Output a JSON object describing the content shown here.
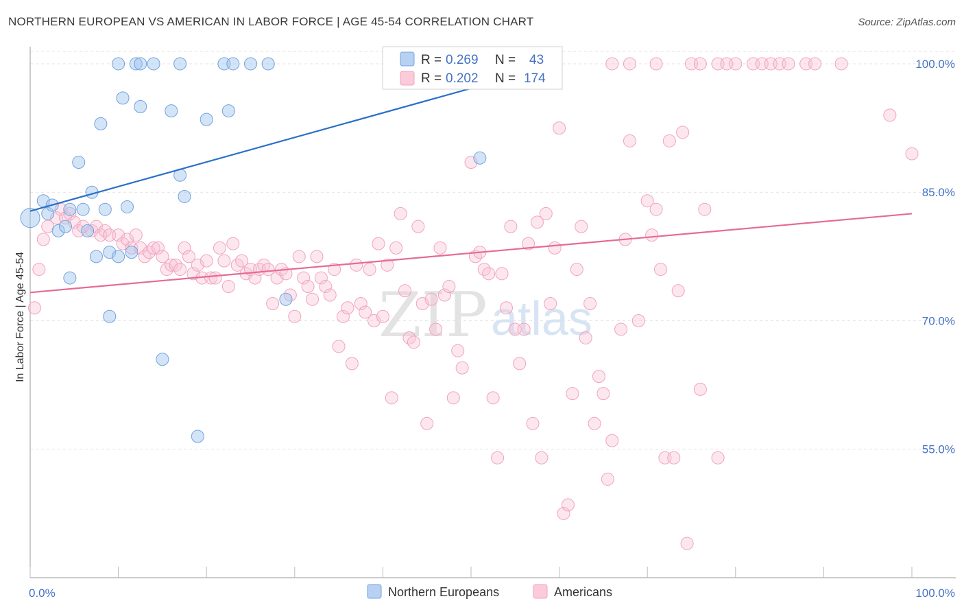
{
  "title": "NORTHERN EUROPEAN VS AMERICAN IN LABOR FORCE | AGE 45-54 CORRELATION CHART",
  "source": "Source: ZipAtlas.com",
  "watermark": {
    "zip": "ZIP",
    "atlas": "atlas"
  },
  "chart_data": {
    "type": "scatter",
    "title": "NORTHERN EUROPEAN VS AMERICAN IN LABOR FORCE | AGE 45-54 CORRELATION CHART",
    "xlabel": "",
    "ylabel": "In Labor Force | Age 45-54",
    "xlim": [
      0,
      100
    ],
    "ylim": [
      40,
      102
    ],
    "x_tick_labels": [
      "0.0%",
      "100.0%"
    ],
    "y_ticks": [
      55,
      70,
      85,
      100
    ],
    "y_tick_labels": [
      "55.0%",
      "70.0%",
      "85.0%",
      "100.0%"
    ],
    "grid": true,
    "legend_position": "top-center",
    "colors": {
      "northern_europeans": "#6fa3e0",
      "americans": "#f2a2bd",
      "blue_line": "#2a6fc9",
      "pink_line": "#e56b94",
      "accent": "#4472c4"
    },
    "legend": [
      {
        "r_label": "R =",
        "r": "0.269",
        "n_label": "N =",
        "n": "43"
      },
      {
        "r_label": "R =",
        "r": "0.202",
        "n_label": "N =",
        "n": "174"
      }
    ],
    "series": [
      {
        "name": "Northern Europeans",
        "trend": [
          [
            0,
            82.8
          ],
          [
            60,
            100
          ]
        ],
        "points": [
          [
            0,
            82
          ],
          [
            1.5,
            84
          ],
          [
            2,
            82.5
          ],
          [
            4.5,
            83
          ],
          [
            3.2,
            80.5
          ],
          [
            4,
            81
          ],
          [
            2.5,
            83.5
          ],
          [
            6,
            83
          ],
          [
            6.5,
            80.5
          ],
          [
            10,
            100
          ],
          [
            12,
            100
          ],
          [
            12.5,
            100
          ],
          [
            14,
            100
          ],
          [
            17,
            100
          ],
          [
            22,
            100
          ],
          [
            23,
            100
          ],
          [
            25,
            100
          ],
          [
            27,
            100
          ],
          [
            10.5,
            96
          ],
          [
            12.5,
            95
          ],
          [
            16,
            94.5
          ],
          [
            20,
            93.5
          ],
          [
            22.5,
            94.5
          ],
          [
            8,
            93
          ],
          [
            5.5,
            88.5
          ],
          [
            17,
            87
          ],
          [
            7,
            85
          ],
          [
            17.5,
            84.5
          ],
          [
            8.5,
            83
          ],
          [
            11,
            83.3
          ],
          [
            9,
            78
          ],
          [
            10,
            77.5
          ],
          [
            11.5,
            78
          ],
          [
            7.5,
            77.5
          ],
          [
            4.5,
            75
          ],
          [
            9,
            70.5
          ],
          [
            15,
            65.5
          ],
          [
            19,
            56.5
          ],
          [
            29,
            72.5
          ],
          [
            51,
            89
          ]
        ]
      },
      {
        "name": "Americans",
        "trend": [
          [
            0,
            73.3
          ],
          [
            100,
            82.5
          ]
        ],
        "points": [
          [
            66,
            100
          ],
          [
            68,
            100
          ],
          [
            71,
            100
          ],
          [
            75,
            100
          ],
          [
            76,
            100
          ],
          [
            78,
            100
          ],
          [
            79,
            100
          ],
          [
            80,
            100
          ],
          [
            82,
            100
          ],
          [
            83,
            100
          ],
          [
            84,
            100
          ],
          [
            85,
            100
          ],
          [
            86,
            100
          ],
          [
            88,
            100
          ],
          [
            89,
            100
          ],
          [
            92,
            100
          ],
          [
            0.5,
            71.5
          ],
          [
            1,
            76
          ],
          [
            1.5,
            79.5
          ],
          [
            2,
            81
          ],
          [
            3,
            82
          ],
          [
            3.5,
            83
          ],
          [
            4,
            82
          ],
          [
            4.5,
            82.5
          ],
          [
            5,
            81.5
          ],
          [
            5.5,
            80.5
          ],
          [
            6,
            81
          ],
          [
            7,
            80.5
          ],
          [
            7.5,
            81
          ],
          [
            8,
            80
          ],
          [
            8.5,
            80.5
          ],
          [
            9,
            80
          ],
          [
            10,
            80
          ],
          [
            10.5,
            79
          ],
          [
            11,
            79.5
          ],
          [
            11.5,
            78.5
          ],
          [
            12,
            80
          ],
          [
            12.5,
            78.5
          ],
          [
            13,
            77.5
          ],
          [
            13.5,
            78
          ],
          [
            14,
            78.5
          ],
          [
            14.5,
            78.5
          ],
          [
            15,
            77.5
          ],
          [
            15.5,
            76
          ],
          [
            16,
            76.5
          ],
          [
            16.5,
            76.5
          ],
          [
            17,
            76
          ],
          [
            17.5,
            78.5
          ],
          [
            18,
            77.5
          ],
          [
            18.5,
            75.5
          ],
          [
            19,
            76.5
          ],
          [
            19.5,
            75
          ],
          [
            20,
            77
          ],
          [
            20.5,
            75
          ],
          [
            21,
            75
          ],
          [
            21.5,
            78.5
          ],
          [
            22,
            77
          ],
          [
            22.5,
            74
          ],
          [
            23,
            79
          ],
          [
            23.5,
            76.5
          ],
          [
            24,
            77
          ],
          [
            24.5,
            75.5
          ],
          [
            25,
            76
          ],
          [
            25.5,
            75
          ],
          [
            26,
            76
          ],
          [
            26.5,
            76.5
          ],
          [
            27,
            76
          ],
          [
            27.5,
            72
          ],
          [
            28,
            75
          ],
          [
            28.5,
            76
          ],
          [
            29,
            75.5
          ],
          [
            29.5,
            73
          ],
          [
            30,
            70.5
          ],
          [
            30.5,
            77.5
          ],
          [
            31,
            75
          ],
          [
            31.5,
            74
          ],
          [
            32,
            72.5
          ],
          [
            32.5,
            77.5
          ],
          [
            33,
            75
          ],
          [
            33.5,
            74
          ],
          [
            34,
            73
          ],
          [
            34.5,
            76
          ],
          [
            35,
            67
          ],
          [
            35.5,
            70.5
          ],
          [
            36,
            71.5
          ],
          [
            36.5,
            65
          ],
          [
            37,
            76.5
          ],
          [
            37.5,
            72
          ],
          [
            38,
            71
          ],
          [
            38.5,
            76
          ],
          [
            39,
            70
          ],
          [
            39.5,
            79
          ],
          [
            40,
            70.5
          ],
          [
            40.5,
            76.5
          ],
          [
            41,
            61
          ],
          [
            41.5,
            78.5
          ],
          [
            42,
            82.5
          ],
          [
            42.5,
            73.5
          ],
          [
            43,
            68
          ],
          [
            43.5,
            67.5
          ],
          [
            44,
            81
          ],
          [
            44.5,
            72
          ],
          [
            45,
            58
          ],
          [
            45.5,
            72.5
          ],
          [
            46,
            69
          ],
          [
            46.5,
            78.5
          ],
          [
            47,
            73
          ],
          [
            47.5,
            74
          ],
          [
            48,
            61
          ],
          [
            48.5,
            66.5
          ],
          [
            49,
            64.5
          ],
          [
            50,
            88.5
          ],
          [
            50.5,
            77.5
          ],
          [
            51,
            78
          ],
          [
            51.5,
            76
          ],
          [
            52,
            75.5
          ],
          [
            52.5,
            61
          ],
          [
            53,
            54
          ],
          [
            53.5,
            75.5
          ],
          [
            54,
            71.5
          ],
          [
            54.5,
            81
          ],
          [
            55,
            69
          ],
          [
            55.5,
            65
          ],
          [
            56,
            69
          ],
          [
            56.5,
            79
          ],
          [
            57,
            58
          ],
          [
            57.5,
            81.5
          ],
          [
            58,
            54
          ],
          [
            58.5,
            82.5
          ],
          [
            59,
            72
          ],
          [
            59.5,
            78.5
          ],
          [
            60,
            92.5
          ],
          [
            60.5,
            47.5
          ],
          [
            61,
            48.5
          ],
          [
            61.5,
            61.5
          ],
          [
            62,
            76
          ],
          [
            62.5,
            81
          ],
          [
            63,
            68
          ],
          [
            63.5,
            72
          ],
          [
            64,
            58
          ],
          [
            64.5,
            63.5
          ],
          [
            65,
            61.5
          ],
          [
            65.5,
            51.5
          ],
          [
            66,
            56
          ],
          [
            67,
            69
          ],
          [
            67.5,
            79.5
          ],
          [
            68,
            91
          ],
          [
            69,
            70
          ],
          [
            70,
            84
          ],
          [
            70.5,
            80
          ],
          [
            71,
            83
          ],
          [
            71.5,
            76
          ],
          [
            72,
            54
          ],
          [
            72.5,
            91
          ],
          [
            73,
            54
          ],
          [
            73.5,
            73.5
          ],
          [
            74,
            92
          ],
          [
            74.5,
            44
          ],
          [
            76,
            62
          ],
          [
            76.5,
            83
          ],
          [
            78,
            54
          ],
          [
            97.5,
            94
          ],
          [
            100,
            89.5
          ]
        ]
      }
    ]
  }
}
